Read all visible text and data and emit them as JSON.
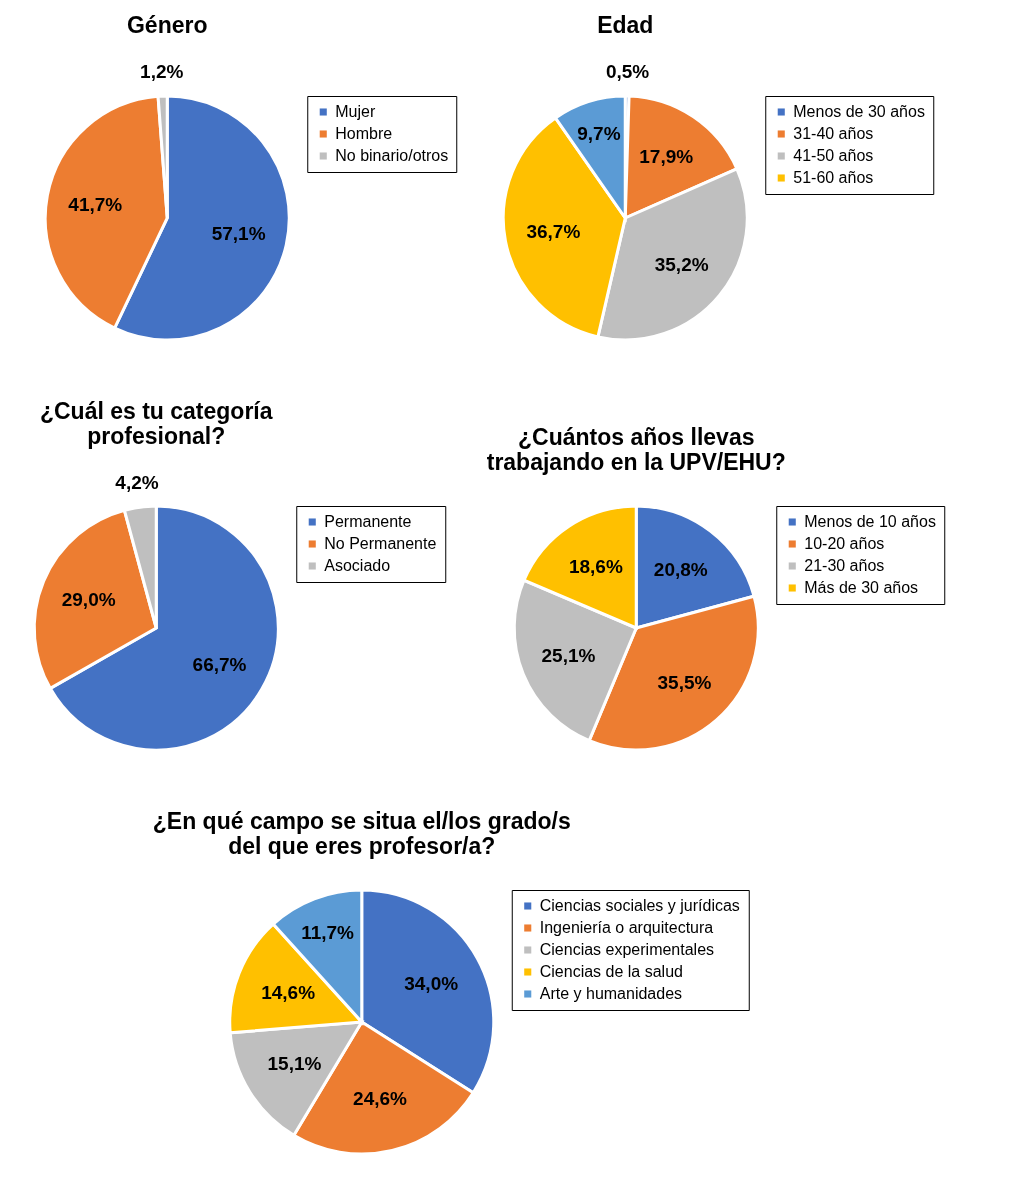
{
  "chart_data": [
    {
      "type": "pie",
      "title": "Género",
      "categories": [
        "Mujer",
        "Hombre",
        "No binario/otros"
      ],
      "values": [
        57.1,
        41.7,
        1.2
      ],
      "value_labels": [
        "57,1%",
        "41,7%",
        "1,2%"
      ],
      "colors": [
        "#4472c4",
        "#ed7d31",
        "#bfbfbf"
      ],
      "legend": "right"
    },
    {
      "type": "pie",
      "title": "Edad",
      "categories": [
        "Menos de 30 años",
        "31-40 años",
        "41-50 años",
        "51-60 años",
        null
      ],
      "values": [
        0.5,
        17.9,
        35.2,
        36.7,
        9.7
      ],
      "value_labels": [
        "0,5%",
        "17,9%",
        "35,2%",
        "36,7%",
        "9,7%"
      ],
      "colors": [
        "#4472c4",
        "#ed7d31",
        "#bfbfbf",
        "#ffc000",
        "#5b9bd5"
      ],
      "legend": "right"
    },
    {
      "type": "pie",
      "title": "¿Cuál es tu categoría profesional?",
      "categories": [
        "Permanente",
        "No Permanente",
        "Asociado"
      ],
      "values": [
        66.7,
        29.0,
        4.2
      ],
      "value_labels": [
        "66,7%",
        "29,0%",
        "4,2%"
      ],
      "colors": [
        "#4472c4",
        "#ed7d31",
        "#bfbfbf"
      ],
      "legend": "right"
    },
    {
      "type": "pie",
      "title": "¿Cuántos años llevas trabajando en la UPV/EHU?",
      "categories": [
        "Menos de 10 años",
        "10-20 años",
        "21-30 años",
        "Más de 30 años"
      ],
      "values": [
        20.8,
        35.5,
        25.1,
        18.6
      ],
      "value_labels": [
        "20,8%",
        "35,5%",
        "25,1%",
        "18,6%"
      ],
      "colors": [
        "#4472c4",
        "#ed7d31",
        "#bfbfbf",
        "#ffc000"
      ],
      "legend": "right"
    },
    {
      "type": "pie",
      "title": "¿En qué campo se situa el/los grado/s del que eres profesor/a?",
      "categories": [
        "Ciencias sociales y jurídicas",
        "Ingeniería o arquitectura",
        "Ciencias experimentales",
        "Ciencias de la salud",
        "Arte y humanidades"
      ],
      "values": [
        34.0,
        24.6,
        15.1,
        14.6,
        11.7
      ],
      "value_labels": [
        "34,0%",
        "24,6%",
        "15,1%",
        "14,6%",
        "11,7%"
      ],
      "colors": [
        "#4472c4",
        "#ed7d31",
        "#bfbfbf",
        "#ffc000",
        "#5b9bd5"
      ],
      "legend": "right"
    }
  ]
}
